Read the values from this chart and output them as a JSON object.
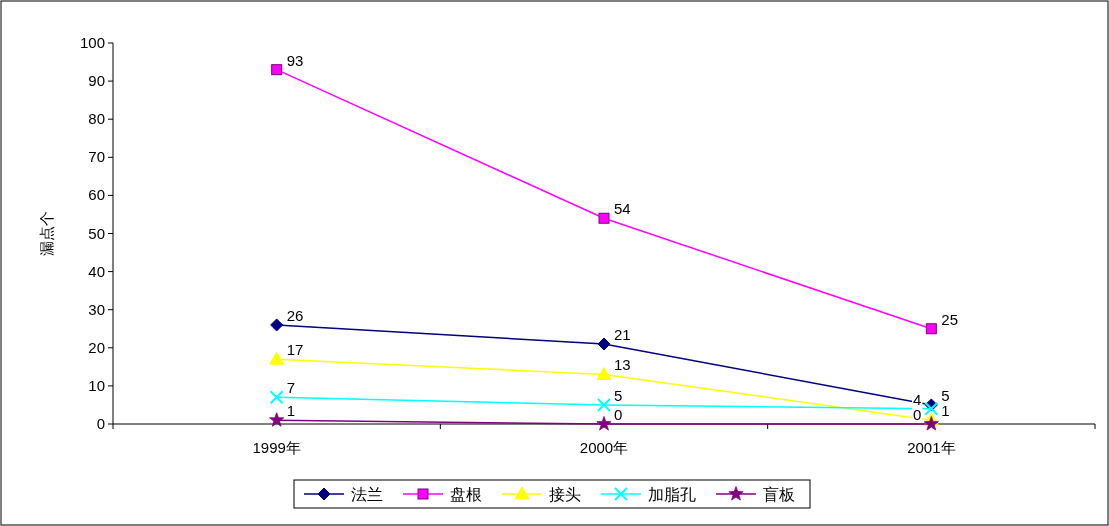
{
  "chart_data": {
    "type": "line",
    "ylabel": "漏点个",
    "categories": [
      "1999年",
      "2000年",
      "2001年"
    ],
    "ylim": [
      0,
      100
    ],
    "yticks": [
      0,
      10,
      20,
      30,
      40,
      50,
      60,
      70,
      80,
      90,
      100
    ],
    "grid": false,
    "legend": "bottom",
    "data_labels": true,
    "series": [
      {
        "name": "法兰",
        "color": "#000080",
        "marker": "diamond",
        "values": [
          26,
          21,
          5
        ]
      },
      {
        "name": "盘根",
        "color": "#ff00ff",
        "marker": "square",
        "values": [
          93,
          54,
          25
        ]
      },
      {
        "name": "接头",
        "color": "#ffff00",
        "marker": "triangle",
        "values": [
          17,
          13,
          1
        ]
      },
      {
        "name": "加脂孔",
        "color": "#00ffff",
        "marker": "cross",
        "values": [
          7,
          5,
          4
        ]
      },
      {
        "name": "盲板",
        "color": "#800080",
        "marker": "star",
        "values": [
          1,
          0,
          0
        ]
      }
    ]
  }
}
